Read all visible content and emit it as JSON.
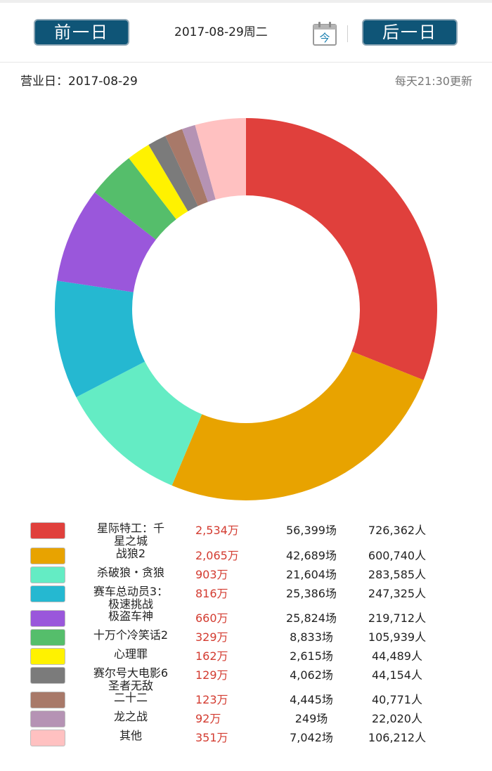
{
  "header": {
    "prev_label": "前一日",
    "next_label": "后一日",
    "date": "2017-08-29周二",
    "calendar_char": "今"
  },
  "info": {
    "business_day": "营业日：2017-08-29",
    "update_note": "每天21:30更新"
  },
  "colors": {
    "nav_button": "#0f5577",
    "box_office_text": "#d33b30"
  },
  "chart_data": {
    "type": "pie",
    "variant": "donut",
    "categories": [
      "星际特工：千星之城",
      "战狼2",
      "杀破狼・贪狼",
      "赛车总动员3：极速挑战",
      "极盗车神",
      "十万个冷笑话2",
      "心理罪",
      "赛尔号大电影6圣者无敌",
      "二十二",
      "龙之战",
      "其他"
    ],
    "name_lines": [
      [
        "星际特工：千",
        "星之城"
      ],
      [
        "战狼2"
      ],
      [
        "杀破狼・贪狼"
      ],
      [
        "赛车总动员3：",
        "极速挑战"
      ],
      [
        "极盗车神"
      ],
      [
        "十万个冷笑话2"
      ],
      [
        "心理罪"
      ],
      [
        "赛尔号大电影6",
        "圣者无敌"
      ],
      [
        "二十二"
      ],
      [
        "龙之战"
      ],
      [
        "其他"
      ]
    ],
    "values": [
      2534,
      2065,
      903,
      816,
      660,
      329,
      162,
      129,
      123,
      92,
      351
    ],
    "box_office_labels": [
      "2,534万",
      "2,065万",
      "903万",
      "816万",
      "660万",
      "329万",
      "162万",
      "129万",
      "123万",
      "92万",
      "351万"
    ],
    "shows_labels": [
      "56,399场",
      "42,689场",
      "21,604场",
      "25,386场",
      "25,824场",
      "8,833场",
      "2,615场",
      "4,062场",
      "4,445场",
      "249场",
      "7,042场"
    ],
    "audience_labels": [
      "726,362人",
      "600,740人",
      "283,585人",
      "247,325人",
      "219,712人",
      "105,939人",
      "44,489人",
      "44,154人",
      "40,771人",
      "22,020人",
      "106,212人"
    ],
    "colors": [
      "#e0403c",
      "#e8a300",
      "#64ecc4",
      "#25b8d1",
      "#9a57db",
      "#55be6b",
      "#fff200",
      "#7b7b7b",
      "#a87969",
      "#b593b4",
      "#ffc1c1"
    ],
    "start_angle": "12 o'clock",
    "direction": "clockwise",
    "legend_position": "bottom"
  }
}
